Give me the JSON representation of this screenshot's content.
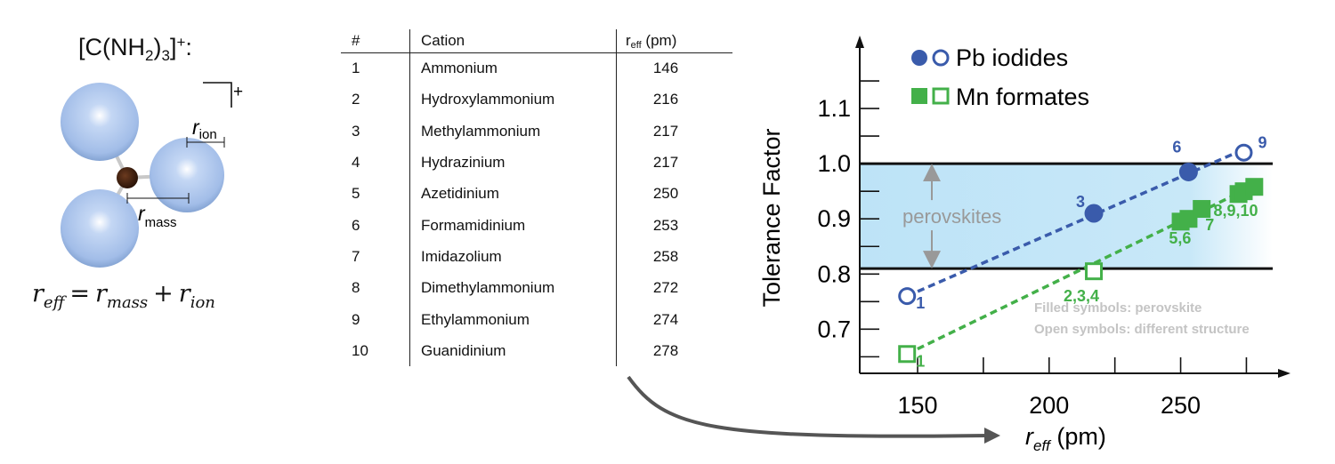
{
  "molecule": {
    "formula_main": "[C(NH",
    "formula_sub": "2",
    "formula_close": ")",
    "formula_sub2": "3",
    "formula_end": "]",
    "formula_sup": "+",
    "formula_colon": ":",
    "charge_label": "+",
    "r_ion_label": "r",
    "r_ion_sub": "ion",
    "r_mass_label": "r",
    "r_mass_sub": "mass",
    "equation": {
      "lhs": "r",
      "lhs_sub": "eff",
      "eq": "=",
      "term1": "r",
      "term1_sub": "mass",
      "plus": "+",
      "term2": "r",
      "term2_sub": "ion"
    },
    "colors": {
      "sphere": "#a9c4ee",
      "center": "#3b1f10"
    }
  },
  "table": {
    "headers": {
      "num": "#",
      "cation": "Cation",
      "reff_r": "r",
      "reff_sub": "eff",
      "reff_unit": " (pm)"
    },
    "rows": [
      {
        "num": "1",
        "cation": "Ammonium",
        "reff": "146"
      },
      {
        "num": "2",
        "cation": "Hydroxylammonium",
        "reff": "216"
      },
      {
        "num": "3",
        "cation": "Methylammonium",
        "reff": "217"
      },
      {
        "num": "4",
        "cation": "Hydrazinium",
        "reff": "217"
      },
      {
        "num": "5",
        "cation": "Azetidinium",
        "reff": "250"
      },
      {
        "num": "6",
        "cation": "Formamidinium",
        "reff": "253"
      },
      {
        "num": "7",
        "cation": "Imidazolium",
        "reff": "258"
      },
      {
        "num": "8",
        "cation": "Dimethylammonium",
        "reff": "272"
      },
      {
        "num": "9",
        "cation": "Ethylammonium",
        "reff": "274"
      },
      {
        "num": "10",
        "cation": "Guanidinium",
        "reff": "278"
      }
    ]
  },
  "chart_data": {
    "type": "scatter",
    "xlabel": "r",
    "xlabel_sub": "eff",
    "xlabel_unit": " (pm)",
    "ylabel": "Tolerance Factor",
    "xlim": [
      128,
      285
    ],
    "ylim": [
      0.62,
      1.2
    ],
    "xticks": [
      150,
      200,
      250
    ],
    "yticks": [
      0.7,
      0.8,
      0.9,
      1.0,
      1.1
    ],
    "ytick_labels": [
      "0.7",
      "0.8",
      "0.9",
      "1.0",
      "1.1"
    ],
    "perovskite_band": [
      0.81,
      1.0
    ],
    "band_label": "perovskites",
    "legend_position": "top-left",
    "notes": [
      "Filled symbols: perovskite",
      "Open symbols: different structure"
    ],
    "series": [
      {
        "name": "Pb iodides",
        "color": "#3a5bab",
        "marker": "circle",
        "fit": [
          [
            146,
            0.76
          ],
          [
            276,
            1.03
          ]
        ],
        "points": [
          {
            "x": 146,
            "y": 0.76,
            "filled": false,
            "label": "1"
          },
          {
            "x": 217,
            "y": 0.91,
            "filled": true,
            "label": "3"
          },
          {
            "x": 253,
            "y": 0.985,
            "filled": true,
            "label": "6"
          },
          {
            "x": 274,
            "y": 1.02,
            "filled": false,
            "label": "9"
          }
        ]
      },
      {
        "name": "Mn formates",
        "color": "#43b049",
        "marker": "square",
        "fit": [
          [
            146,
            0.655
          ],
          [
            280,
            0.965
          ]
        ],
        "points": [
          {
            "x": 146,
            "y": 0.655,
            "filled": false,
            "label": "1"
          },
          {
            "x": 217,
            "y": 0.805,
            "filled": false,
            "label": "2,3,4"
          },
          {
            "x": 250,
            "y": 0.895,
            "filled": true,
            "label": ""
          },
          {
            "x": 253,
            "y": 0.9,
            "filled": true,
            "label": "5,6"
          },
          {
            "x": 258,
            "y": 0.918,
            "filled": true,
            "label": "7"
          },
          {
            "x": 272,
            "y": 0.945,
            "filled": true,
            "label": ""
          },
          {
            "x": 274,
            "y": 0.95,
            "filled": true,
            "label": "8,9,10"
          },
          {
            "x": 278,
            "y": 0.958,
            "filled": true,
            "label": ""
          }
        ]
      }
    ]
  }
}
